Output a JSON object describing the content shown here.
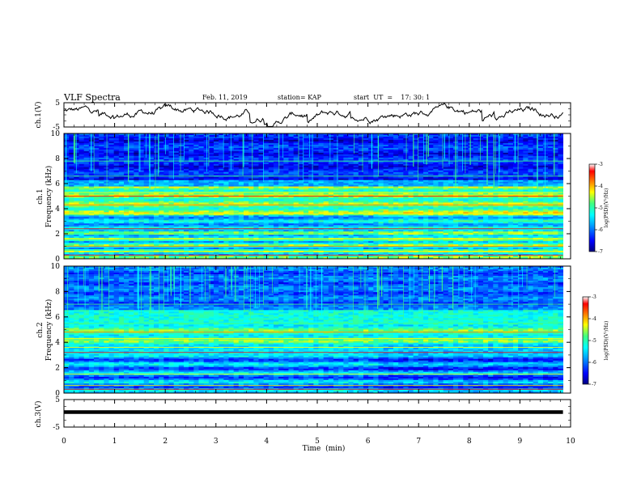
{
  "header": {
    "title": "VLF Spectra",
    "date": "Feb. 11, 2019",
    "station": "station= KAP",
    "start_ut": "start  UT  =    17: 30: 1"
  },
  "chart_data": [
    {
      "type": "line",
      "ylabel": "ch.1(V)",
      "ylim": [
        -5,
        5
      ],
      "yticks": [
        "5",
        "-5"
      ],
      "xlim": [
        0,
        10
      ],
      "trace": "noisy voltage trace",
      "color": "#000000"
    },
    {
      "type": "heatmap",
      "ylabel": "ch.1\nFrequency (kHz)",
      "ylim": [
        0,
        10
      ],
      "yticks": [
        "0",
        "2",
        "4",
        "6",
        "8",
        "10"
      ],
      "xlim": [
        0,
        10
      ],
      "data_extent_x": [
        0,
        9.85
      ],
      "colorbar": {
        "label": "log(PSD)(V²/Hz)",
        "range": [
          -7,
          -3
        ],
        "ticks": [
          "-3",
          "-4",
          "-5",
          "-6",
          "-7"
        ]
      }
    },
    {
      "type": "heatmap",
      "ylabel": "ch.2\nFrequency (kHz)",
      "ylim": [
        0,
        10
      ],
      "yticks": [
        "0",
        "2",
        "4",
        "6",
        "8",
        "10"
      ],
      "xlim": [
        0,
        10
      ],
      "data_extent_x": [
        0,
        9.85
      ],
      "colorbar": {
        "label": "log(PSD)(V²/Hz)",
        "range": [
          -7,
          -3
        ],
        "ticks": [
          "-3",
          "-4",
          "-5",
          "-6",
          "-7"
        ]
      }
    },
    {
      "type": "line",
      "ylabel": "ch.3(V)",
      "ylim": [
        -5,
        5
      ],
      "yticks": [
        "5",
        "-5"
      ],
      "xlim": [
        0,
        10
      ],
      "trace": "constant",
      "constant_value": 0,
      "color": "#000000"
    }
  ],
  "xaxis": {
    "label": "Time  (min)",
    "ticks": [
      "0",
      "1",
      "2",
      "3",
      "4",
      "5",
      "6",
      "7",
      "8",
      "9",
      "10"
    ]
  },
  "colors": {
    "colormap": [
      "#000080",
      "#0000ff",
      "#00a0ff",
      "#00ffff",
      "#40ff80",
      "#ffff00",
      "#ff8000",
      "#ff0000",
      "#ffffff"
    ]
  }
}
